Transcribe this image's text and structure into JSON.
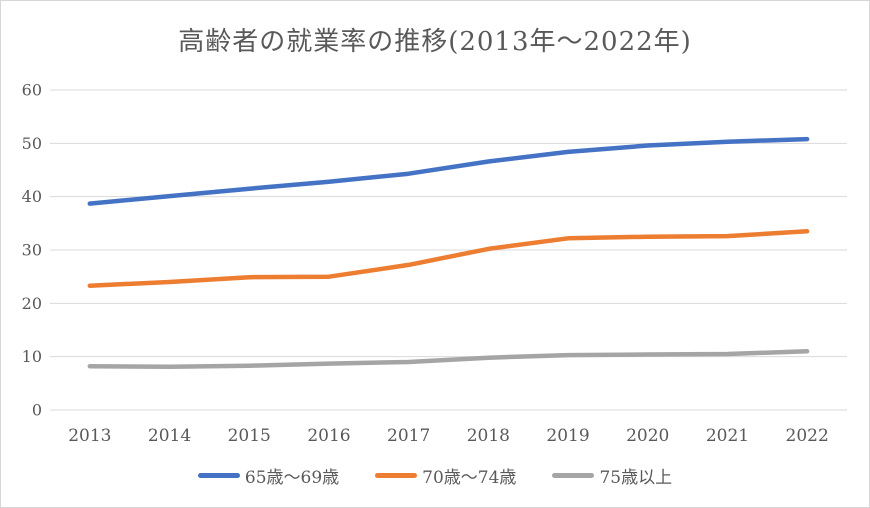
{
  "frame": {
    "background": "#ffffff",
    "border_color": "#d6d6d6"
  },
  "chart_data": {
    "type": "line",
    "title": "高齢者の就業率の推移(2013年〜2022年)",
    "title_color": "#595959",
    "xlabel": "",
    "ylabel": "",
    "categories": [
      "2013",
      "2014",
      "2015",
      "2016",
      "2017",
      "2018",
      "2019",
      "2020",
      "2021",
      "2022"
    ],
    "series": [
      {
        "name": "65歳〜69歳",
        "color": "#4472C4",
        "values": [
          38.7,
          40.1,
          41.5,
          42.8,
          44.3,
          46.6,
          48.4,
          49.6,
          50.3,
          50.8
        ]
      },
      {
        "name": "70歳〜74歳",
        "color": "#ED7D31",
        "values": [
          23.3,
          24.0,
          24.9,
          25.0,
          27.2,
          30.2,
          32.2,
          32.5,
          32.6,
          33.5
        ]
      },
      {
        "name": "75歳以上",
        "color": "#A5A5A5",
        "values": [
          8.2,
          8.1,
          8.3,
          8.7,
          9.0,
          9.8,
          10.3,
          10.4,
          10.5,
          11.0
        ]
      }
    ],
    "y_ticks": [
      0,
      10,
      20,
      30,
      40,
      50,
      60
    ],
    "ylim": [
      0,
      60
    ],
    "grid": true,
    "gridline_color": "#D9D9D9",
    "axis_text_color": "#595959",
    "legend_position": "bottom"
  }
}
